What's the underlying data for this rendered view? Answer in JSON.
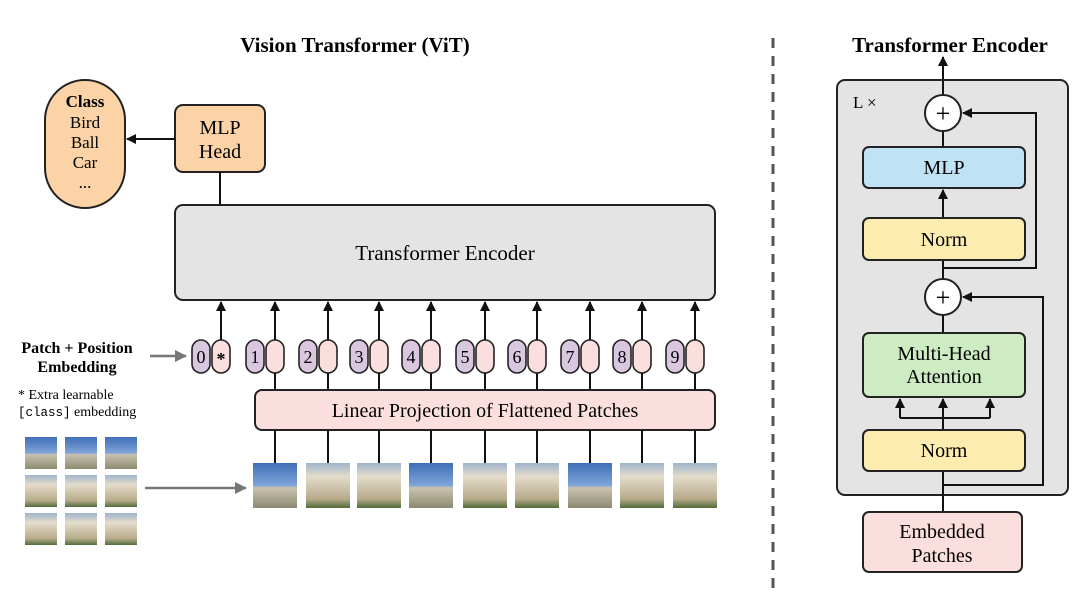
{
  "vit": {
    "title": "Vision Transformer (ViT)",
    "class_box": {
      "heading": "Class",
      "items": [
        "Bird",
        "Ball",
        "Car",
        "..."
      ]
    },
    "mlp_head": {
      "line1": "MLP",
      "line2": "Head"
    },
    "encoder_label": "Transformer Encoder",
    "embedding_label": {
      "line1": "Patch + Position",
      "line2": "Embedding"
    },
    "note": {
      "line1": "* Extra learnable",
      "code": "[class]",
      "line2_rest": " embedding"
    },
    "tokens": [
      "0",
      "1",
      "2",
      "3",
      "4",
      "5",
      "6",
      "7",
      "8",
      "9"
    ],
    "class_token_marker": "*",
    "projection_label": "Linear Projection of Flattened Patches"
  },
  "encoder_detail": {
    "title": "Transformer Encoder",
    "repeat_label": "L ×",
    "plus": "+",
    "mlp": "MLP",
    "norm": "Norm",
    "attention": {
      "line1": "Multi-Head",
      "line2": "Attention"
    },
    "embedded": {
      "line1": "Embedded",
      "line2": "Patches"
    }
  },
  "colors": {
    "orange": "#fbd3a6",
    "gray": "#e4e4e4",
    "purple": "#d9c6df",
    "pink": "#fbdfdf",
    "blue": "#c0e2f5",
    "yellow": "#fcecaf",
    "green": "#cdecc3",
    "arrow_gray": "#777777"
  }
}
